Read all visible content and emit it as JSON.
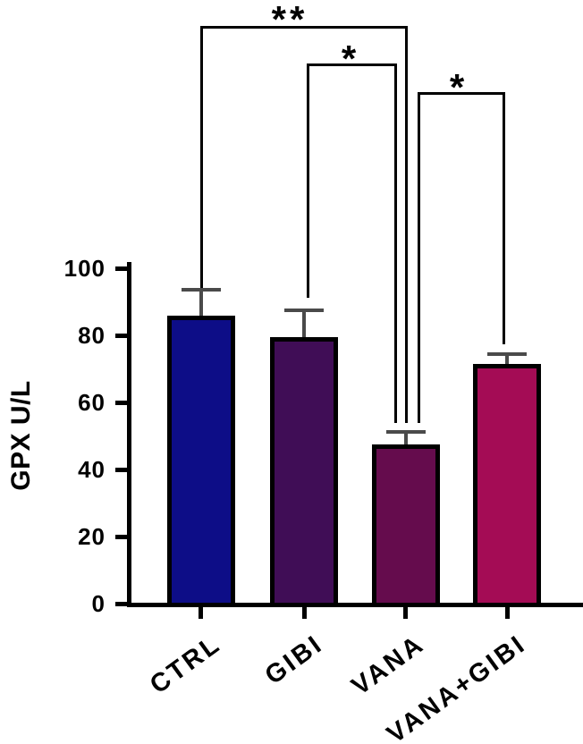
{
  "chart_data": {
    "type": "bar",
    "title": "",
    "xlabel": "",
    "ylabel": "GPX U/L",
    "categories": [
      "CTRL",
      "GIBI",
      "VANA",
      "VANA+GIBI"
    ],
    "values": [
      86,
      79.5,
      47.5,
      71.5
    ],
    "errors": [
      7.5,
      8,
      3.7,
      2.8
    ],
    "error_direction": "plus-only",
    "bar_colors": [
      "#0d0d87",
      "#400d56",
      "#650c4d",
      "#a40c55"
    ],
    "bar_border_color": "#000000",
    "ylim": [
      0,
      100
    ],
    "ytick_labels_top_to_bottom": [
      "100",
      "80",
      "60",
      "40",
      "20",
      "0"
    ],
    "grid": false,
    "significance_brackets": [
      {
        "group1": "CTRL",
        "group2": "VANA",
        "label": "**"
      },
      {
        "group1": "GIBI",
        "group2": "VANA",
        "label": "*"
      },
      {
        "group1": "VANA",
        "group2": "VANA+GIBI",
        "label": "*"
      }
    ]
  }
}
